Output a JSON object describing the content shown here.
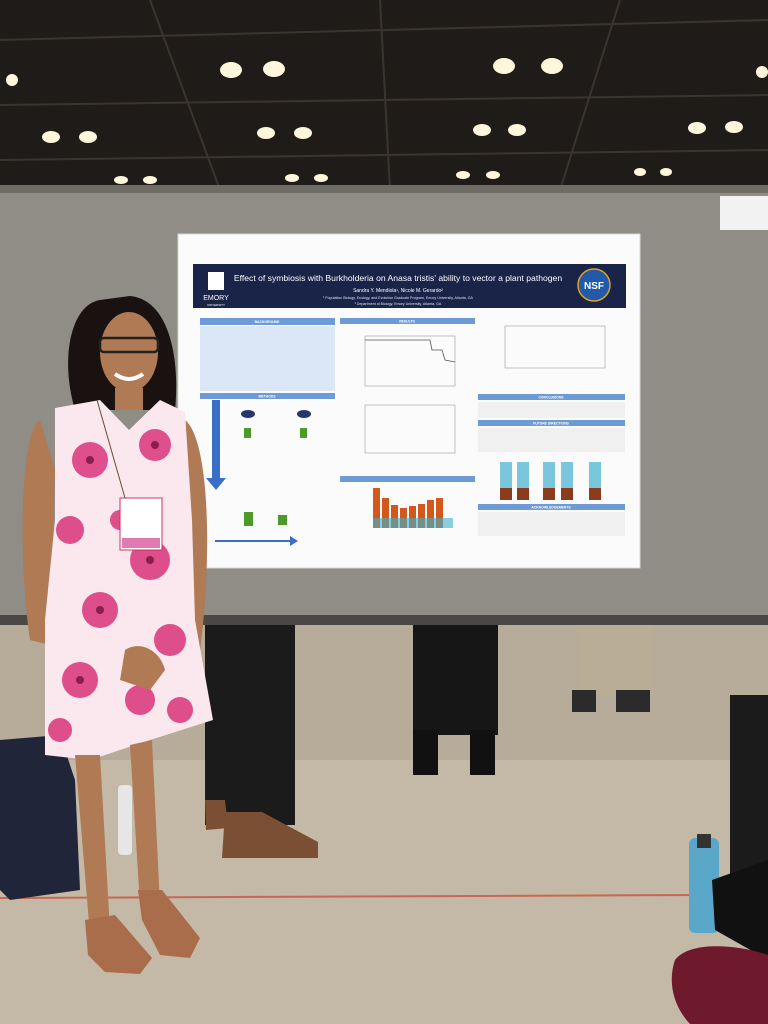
{
  "poster": {
    "logo_left": "EMORY",
    "logo_left_sub": "UNIVERSITY",
    "logo_right": "NSF",
    "title": "Effect of symbiosis with Burkholderia on Anasa tristis' ability to vector a plant pathogen",
    "authors": "Sandra Y. Mendiola¹, Nicole M. Gerardo²",
    "affiliation_1": "¹ Population Biology, Ecology, and Evolution Graduate Program, Emory University, Atlanta, GA",
    "affiliation_2": "² Department of Biology, Emory University, Atlanta, GA",
    "sections": {
      "background": "BACKGROUND",
      "methods": "METHODS",
      "results": "RESULTS",
      "conclusions": "CONCLUSIONS",
      "future": "FUTURE DIRECTIONS",
      "acknowledgements": "ACKNOWLEDGEMENTS"
    }
  }
}
